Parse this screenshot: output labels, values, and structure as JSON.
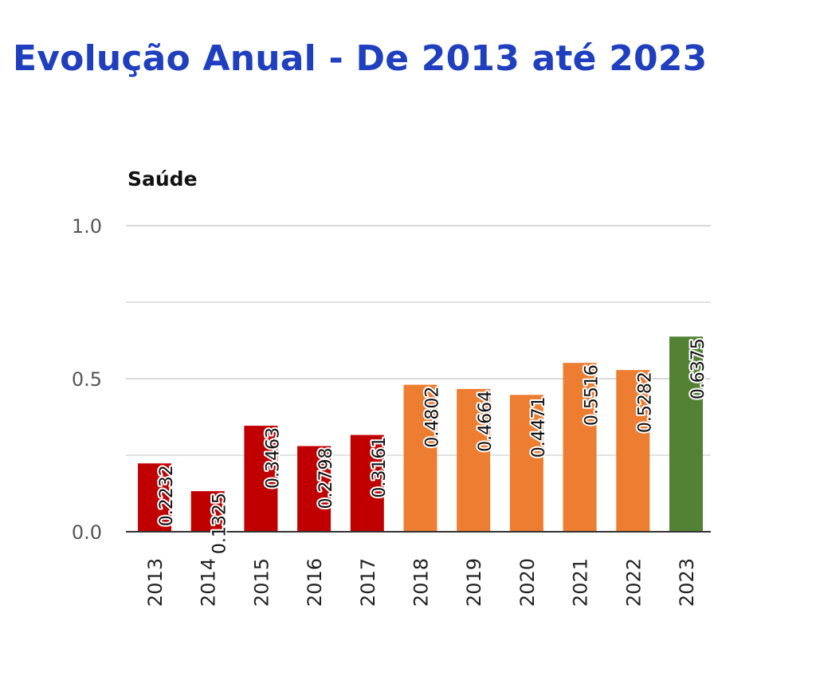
{
  "page": {
    "title": "Evolução Anual - De 2013 até 2023"
  },
  "colors": {
    "title": "#1f3fbf",
    "low": "#c00000",
    "mid": "#ed7d31",
    "high": "#548235",
    "grid": "#d9d9d9",
    "axis": "#333333"
  },
  "chart_data": {
    "type": "bar",
    "title": "Saúde",
    "xlabel": "",
    "ylabel": "",
    "categories": [
      "2013",
      "2014",
      "2015",
      "2016",
      "2017",
      "2018",
      "2019",
      "2020",
      "2021",
      "2022",
      "2023"
    ],
    "values": [
      0.2232,
      0.1325,
      0.3463,
      0.2798,
      0.3161,
      0.4802,
      0.4664,
      0.4471,
      0.5516,
      0.5282,
      0.6375
    ],
    "value_labels": [
      "0.2232",
      "0.1325",
      "0.3463",
      "0.2798",
      "0.3161",
      "0.4802",
      "0.4664",
      "0.4471",
      "0.5516",
      "0.5282",
      "0.6375"
    ],
    "bar_color_keys": [
      "low",
      "low",
      "low",
      "low",
      "low",
      "mid",
      "mid",
      "mid",
      "mid",
      "mid",
      "high"
    ],
    "ylim": [
      0,
      1
    ],
    "yticks": [
      {
        "value": 0,
        "label": "0.0"
      },
      {
        "value": 0.25,
        "label": ""
      },
      {
        "value": 0.5,
        "label": "0.5"
      },
      {
        "value": 0.75,
        "label": ""
      },
      {
        "value": 1.0,
        "label": "1.0"
      }
    ],
    "grid": true,
    "legend": "none"
  }
}
